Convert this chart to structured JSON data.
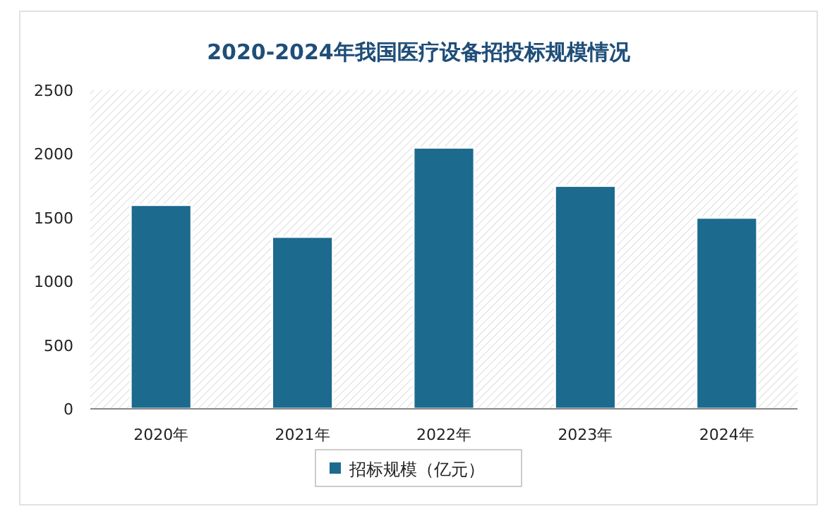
{
  "chart_data": {
    "type": "bar",
    "title": "2020-2024年我国医疗设备招投标规模情况",
    "categories": [
      "2020年",
      "2021年",
      "2022年",
      "2023年",
      "2024年"
    ],
    "series": [
      {
        "name": "招标规模（亿元）",
        "color": "#1c6a8e",
        "values": [
          1600,
          1350,
          2050,
          1750,
          1500
        ]
      }
    ],
    "ylim": [
      0,
      2500
    ],
    "yticks": [
      0,
      500,
      1000,
      1500,
      2000,
      2500
    ],
    "grid": false,
    "legend": "bottom"
  }
}
